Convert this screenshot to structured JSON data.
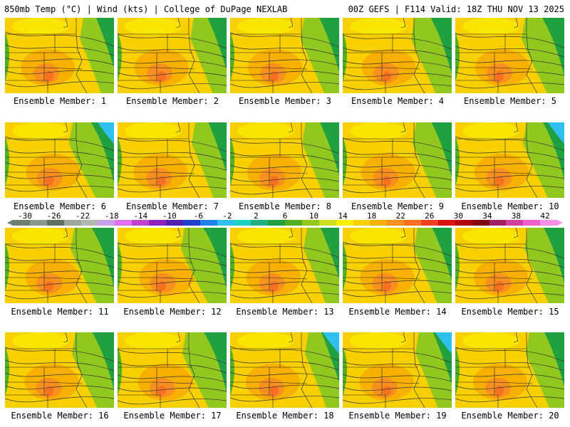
{
  "header": {
    "left_title": "850mb Temp (°C) | Wind (kts) | College of DuPage NEXLAB",
    "right_title": "00Z GEFS | F114 Valid: 18Z THU NOV 13 2025"
  },
  "colorbar": {
    "tick_labels": [
      "-30",
      "-26",
      "-22",
      "-18",
      "-14",
      "-10",
      "-6",
      "-2",
      "2",
      "6",
      "10",
      "14",
      "18",
      "22",
      "26",
      "30",
      "34",
      "38",
      "42"
    ],
    "colors": [
      "#6f7f6f",
      "#8a9a8a",
      "#5f6f5f",
      "#9aa79a",
      "#b0b8b0",
      "#c8a0e8",
      "#e070f0",
      "#c040d0",
      "#9020c0",
      "#5020b0",
      "#2040d0",
      "#2080f0",
      "#30c0f0",
      "#20d0c0",
      "#20b080",
      "#20a040",
      "#50b020",
      "#90c820",
      "#d0e020",
      "#f8f000",
      "#f8d000",
      "#f8b000",
      "#f89020",
      "#f87020",
      "#f04020",
      "#e01010",
      "#b00010",
      "#800010",
      "#a02060",
      "#d040a0",
      "#f060d0",
      "#f890e8"
    ]
  },
  "members": [
    {
      "label": "Ensemble Member: 1"
    },
    {
      "label": "Ensemble Member: 2"
    },
    {
      "label": "Ensemble Member: 3"
    },
    {
      "label": "Ensemble Member: 4"
    },
    {
      "label": "Ensemble Member: 5"
    },
    {
      "label": "Ensemble Member: 6"
    },
    {
      "label": "Ensemble Member: 7"
    },
    {
      "label": "Ensemble Member: 8"
    },
    {
      "label": "Ensemble Member: 9"
    },
    {
      "label": "Ensemble Member: 10"
    },
    {
      "label": "Ensemble Member: 11"
    },
    {
      "label": "Ensemble Member: 12"
    },
    {
      "label": "Ensemble Member: 13"
    },
    {
      "label": "Ensemble Member: 14"
    },
    {
      "label": "Ensemble Member: 15"
    },
    {
      "label": "Ensemble Member: 16"
    },
    {
      "label": "Ensemble Member: 17"
    },
    {
      "label": "Ensemble Member: 18"
    },
    {
      "label": "Ensemble Member: 19"
    },
    {
      "label": "Ensemble Member: 20"
    }
  ]
}
